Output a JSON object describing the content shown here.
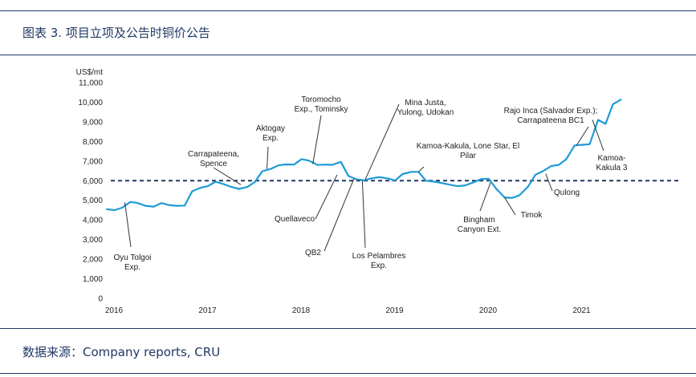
{
  "header": {
    "title": "图表 3. 项目立项及公告时铜价公告"
  },
  "footer": {
    "source": "数据来源：Company reports, CRU"
  },
  "colors": {
    "line": "#1e9ad6",
    "reference": "#1f3864",
    "rule": "#1f3864",
    "text": "#222222"
  },
  "chart_data": {
    "type": "line",
    "ylabel": "US$/mt",
    "ylim": [
      0,
      11000
    ],
    "yticks": [
      "0",
      "1,000",
      "2,000",
      "3,000",
      "4,000",
      "5,000",
      "6,000",
      "7,000",
      "8,000",
      "9,000",
      "10,000",
      "11,000"
    ],
    "xlim": [
      2016,
      2021.9
    ],
    "xticks": [
      {
        "value": 2016,
        "label": "2016"
      },
      {
        "value": 2017,
        "label": "2017"
      },
      {
        "value": 2018,
        "label": "2018"
      },
      {
        "value": 2019,
        "label": "2019"
      },
      {
        "value": 2020,
        "label": "2020"
      },
      {
        "value": 2021,
        "label": "2021"
      }
    ],
    "reference_line": 6000,
    "series": [
      {
        "x": [
          2015.95,
          2016.04,
          2016.12,
          2016.21,
          2016.29,
          2016.37,
          2016.46,
          2016.54,
          2016.62,
          2016.71,
          2016.79,
          2016.87,
          2016.96,
          2017.04,
          2017.12,
          2017.21,
          2017.29,
          2017.37,
          2017.46,
          2017.54,
          2017.62,
          2017.71,
          2017.79,
          2017.87,
          2017.96,
          2018.04,
          2018.12,
          2018.21,
          2018.29,
          2018.37,
          2018.46,
          2018.54,
          2018.62,
          2018.71,
          2018.79,
          2018.87,
          2018.96,
          2019.04,
          2019.12,
          2019.21,
          2019.29,
          2019.37,
          2019.46,
          2019.54,
          2019.62,
          2019.71,
          2019.79,
          2019.87,
          2019.96,
          2020.04,
          2020.12,
          2020.21,
          2020.29,
          2020.37,
          2020.46,
          2020.54,
          2020.62,
          2020.71,
          2020.79,
          2020.87,
          2020.96,
          2021.04,
          2021.12,
          2021.21,
          2021.29,
          2021.37,
          2021.46
        ],
        "y": [
          4550,
          4500,
          4620,
          4920,
          4860,
          4720,
          4680,
          4860,
          4760,
          4720,
          4730,
          5460,
          5640,
          5730,
          5950,
          5820,
          5680,
          5580,
          5680,
          5930,
          6480,
          6600,
          6780,
          6830,
          6820,
          7100,
          7020,
          6800,
          6820,
          6810,
          6960,
          6250,
          6080,
          6020,
          6120,
          6180,
          6120,
          6010,
          6340,
          6450,
          6450,
          6000,
          5950,
          5880,
          5800,
          5720,
          5760,
          5900,
          6080,
          6100,
          5600,
          5150,
          5120,
          5260,
          5690,
          6300,
          6480,
          6750,
          6800,
          7100,
          7800,
          7830,
          7860,
          9100,
          8900,
          9900,
          10150
        ]
      }
    ],
    "annotations": [
      {
        "label": "Oyu Tolgoi Exp.",
        "lines": [
          "Oyu Tolgoi",
          "Exp."
        ],
        "x": 2016.15,
        "y": 4900
      },
      {
        "label": "Carrapateena, Spence",
        "lines": [
          "Carrapateena,",
          "Spence"
        ],
        "x": 2017.39,
        "y": 5800
      },
      {
        "label": "Aktogay Exp.",
        "lines": [
          "Aktogay",
          "Exp."
        ],
        "x": 2017.67,
        "y": 6600
      },
      {
        "label": "Toromocho Exp., Tominsky",
        "lines": [
          "Toromocho",
          "Exp., Tominsky"
        ],
        "x": 2018.16,
        "y": 6850
      },
      {
        "label": "Quellaveco",
        "lines": [
          "Quellaveco"
        ],
        "x": 2018.42,
        "y": 6300
      },
      {
        "label": "Mina Justa, Yulong, Udokan",
        "lines": [
          "Mina Justa,",
          "Yulong, Udokan"
        ],
        "x": 2018.72,
        "y": 6050
      },
      {
        "label": "QB2",
        "lines": [
          "QB2"
        ],
        "x": 2018.6,
        "y": 6100
      },
      {
        "label": "Los Pelambres Exp.",
        "lines": [
          "Los Pelambres",
          "Exp."
        ],
        "x": 2018.69,
        "y": 6000
      },
      {
        "label": "Kamoa-Kakula, Lone Star, El Pilar",
        "lines": [
          "Kamoa-Kakula, Lone Star, El",
          "Pilar"
        ],
        "x": 2019.29,
        "y": 6450
      },
      {
        "label": "Bingham Canyon Ext.",
        "lines": [
          "Bingham",
          "Canyon Ext."
        ],
        "x": 2020.06,
        "y": 5900
      },
      {
        "label": "Timok",
        "lines": [
          "Timok"
        ],
        "x": 2020.21,
        "y": 5150
      },
      {
        "label": "Qulong",
        "lines": [
          "Qulong"
        ],
        "x": 2020.65,
        "y": 6350
      },
      {
        "label": "Rajo Inca (Salvador Exp.); Carrapateena BC1",
        "lines": [
          "Rajo Inca (Salvador Exp.);",
          "Carrapateena BC1"
        ],
        "x": 2020.98,
        "y": 7800
      },
      {
        "label": "Kamoa-Kakula 3",
        "lines": [
          "Kamoa-",
          "Kakula 3"
        ],
        "x": 2021.15,
        "y": 9100
      }
    ]
  }
}
